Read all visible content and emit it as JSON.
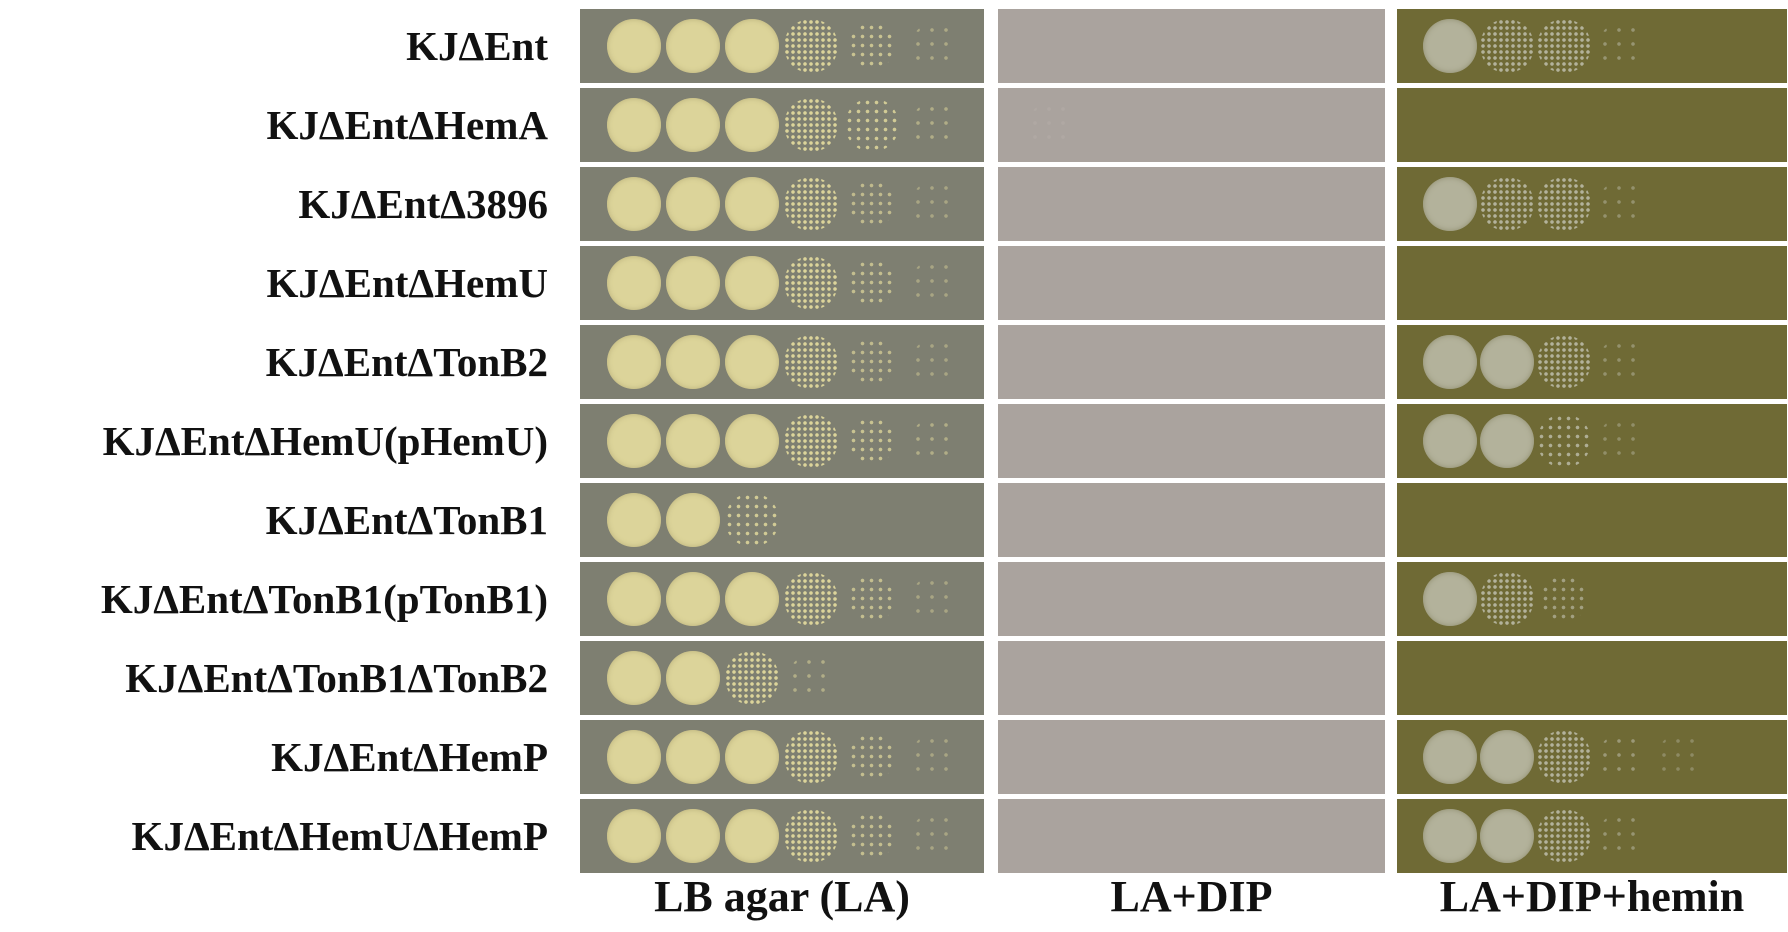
{
  "strains": [
    "KJΔEnt",
    "KJΔEntΔHemA",
    "KJΔEntΔ3896",
    "KJΔEntΔHemU",
    "KJΔEntΔTonB2",
    "KJΔEntΔHemU(pHemU)",
    "KJΔEntΔTonB1",
    "KJΔEntΔTonB1(pTonB1)",
    "KJΔEntΔTonB1ΔTonB2",
    "KJΔEntΔHemP",
    "KJΔEntΔHemUΔHemP"
  ],
  "panels": [
    {
      "label": "LB agar (LA)",
      "colors": {
        "bg": "#7e7f71",
        "colony": "#dcd49a",
        "edge": "#b9b07a"
      }
    },
    {
      "label": "LA+DIP",
      "colors": {
        "bg": "#aaa39e",
        "colony": "#b6aea9",
        "edge": "#a59e99"
      }
    },
    {
      "label": "LA+DIP+hemin",
      "colors": {
        "bg": "#6f6a35",
        "colony": "#b3b29b",
        "edge": "#8f8d6e"
      }
    }
  ],
  "growth": [
    [
      [
        1,
        1,
        1,
        0.8,
        0.45,
        0.15
      ],
      [
        0,
        0,
        0,
        0,
        0,
        0
      ],
      [
        1,
        0.9,
        0.7,
        0.25,
        0,
        0
      ]
    ],
    [
      [
        1,
        1,
        1,
        0.9,
        0.55,
        0.2
      ],
      [
        0.15,
        0,
        0,
        0,
        0,
        0
      ],
      [
        0,
        0,
        0,
        0,
        0,
        0
      ]
    ],
    [
      [
        1,
        1,
        1,
        0.75,
        0.35,
        0.1
      ],
      [
        0,
        0,
        0,
        0,
        0,
        0
      ],
      [
        1,
        0.9,
        0.7,
        0.2,
        0,
        0
      ]
    ],
    [
      [
        1,
        1,
        1,
        0.75,
        0.4,
        0.1
      ],
      [
        0,
        0,
        0,
        0,
        0,
        0
      ],
      [
        0,
        0,
        0,
        0,
        0,
        0
      ]
    ],
    [
      [
        1,
        1,
        1,
        0.7,
        0.35,
        0.1
      ],
      [
        0,
        0,
        0,
        0,
        0,
        0
      ],
      [
        1,
        1,
        0.7,
        0.2,
        0,
        0
      ]
    ],
    [
      [
        1,
        1,
        1,
        0.85,
        0.45,
        0.2
      ],
      [
        0,
        0,
        0,
        0,
        0,
        0
      ],
      [
        1,
        1,
        0.6,
        0.15,
        0,
        0
      ]
    ],
    [
      [
        1,
        1,
        0.55,
        0,
        0,
        0
      ],
      [
        0,
        0,
        0,
        0,
        0,
        0
      ],
      [
        0,
        0,
        0,
        0,
        0,
        0
      ]
    ],
    [
      [
        1,
        1,
        1,
        0.85,
        0.4,
        0.1
      ],
      [
        0,
        0,
        0,
        0,
        0,
        0
      ],
      [
        1,
        0.65,
        0.4,
        0,
        0,
        0
      ]
    ],
    [
      [
        1,
        1,
        0.85,
        0.2,
        0,
        0
      ],
      [
        0,
        0,
        0,
        0,
        0,
        0
      ],
      [
        0,
        0,
        0,
        0,
        0,
        0
      ]
    ],
    [
      [
        1,
        1,
        1,
        0.8,
        0.4,
        0.1
      ],
      [
        0,
        0,
        0,
        0,
        0,
        0
      ],
      [
        1,
        1,
        0.7,
        0.3,
        0.1,
        0
      ]
    ],
    [
      [
        1,
        1,
        1,
        0.85,
        0.4,
        0.1
      ],
      [
        0,
        0,
        0,
        0,
        0,
        0
      ],
      [
        1,
        1,
        0.7,
        0.25,
        0,
        0
      ]
    ]
  ]
}
